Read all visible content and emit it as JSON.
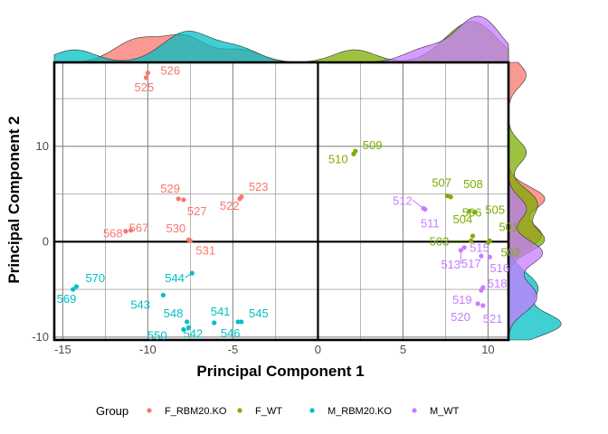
{
  "chart_data": {
    "type": "scatter",
    "title": "",
    "xlabel": "Principal Component 1",
    "ylabel": "Principal Component 2",
    "xlim": [
      -15.5,
      11.2
    ],
    "ylim": [
      -10.3,
      18.8
    ],
    "xticks": [
      -15,
      -10,
      -5,
      0,
      5,
      10
    ],
    "yticks": [
      -10,
      0,
      10
    ],
    "grid": true,
    "marginal_density": {
      "top": true,
      "right": true
    },
    "legend": {
      "title": "Group",
      "position": "bottom"
    },
    "series": [
      {
        "name": "F_RBM20.KO",
        "color": "#F8766D",
        "points": [
          {
            "label": "526",
            "x": -10.0,
            "y": 17.7
          },
          {
            "label": "525",
            "x": -10.1,
            "y": 17.2
          },
          {
            "label": "529",
            "x": -8.2,
            "y": 4.5
          },
          {
            "label": "527",
            "x": -7.9,
            "y": 4.4
          },
          {
            "label": "523",
            "x": -4.5,
            "y": 4.7
          },
          {
            "label": "522",
            "x": -4.6,
            "y": 4.5
          },
          {
            "label": "567",
            "x": -11.0,
            "y": 1.2
          },
          {
            "label": "568",
            "x": -11.3,
            "y": 1.1
          },
          {
            "label": "530",
            "x": -7.6,
            "y": 0.2
          },
          {
            "label": "531",
            "x": -7.5,
            "y": 0.1
          }
        ]
      },
      {
        "name": "F_WT",
        "color": "#7CAE00",
        "points": [
          {
            "label": "509",
            "x": 2.2,
            "y": 9.5
          },
          {
            "label": "510",
            "x": 2.1,
            "y": 9.2
          },
          {
            "label": "507",
            "x": 7.6,
            "y": 4.8
          },
          {
            "label": "508",
            "x": 7.8,
            "y": 4.7
          },
          {
            "label": "506",
            "x": 8.9,
            "y": 3.2
          },
          {
            "label": "505",
            "x": 9.2,
            "y": 3.1
          },
          {
            "label": "504",
            "x": 9.1,
            "y": 0.6
          },
          {
            "label": "501",
            "x": 10.1,
            "y": 0.1
          },
          {
            "label": "503",
            "x": 9.0,
            "y": 0.1
          },
          {
            "label": "502",
            "x": 10.0,
            "y": -0.1
          }
        ]
      },
      {
        "name": "M_RBM20.KO",
        "color": "#00BFC4",
        "points": [
          {
            "label": "570",
            "x": -14.2,
            "y": -4.7
          },
          {
            "label": "569",
            "x": -14.4,
            "y": -5.0
          },
          {
            "label": "544",
            "x": -7.4,
            "y": -3.3
          },
          {
            "label": "543",
            "x": -9.1,
            "y": -5.6
          },
          {
            "label": "548",
            "x": -7.7,
            "y": -8.4
          },
          {
            "label": "541",
            "x": -6.1,
            "y": -8.5
          },
          {
            "label": "545",
            "x": -4.7,
            "y": -8.4
          },
          {
            "label": "546",
            "x": -4.5,
            "y": -8.4
          },
          {
            "label": "550",
            "x": -7.9,
            "y": -9.2
          },
          {
            "label": "542",
            "x": -7.6,
            "y": -9.0
          }
        ]
      },
      {
        "name": "M_WT",
        "color": "#C77CFF",
        "points": [
          {
            "label": "512",
            "x": 6.2,
            "y": 3.5
          },
          {
            "label": "511",
            "x": 6.3,
            "y": 3.4
          },
          {
            "label": "515",
            "x": 8.6,
            "y": -0.6
          },
          {
            "label": "513",
            "x": 8.4,
            "y": -0.9
          },
          {
            "label": "517",
            "x": 9.6,
            "y": -1.5
          },
          {
            "label": "516",
            "x": 10.1,
            "y": -1.6
          },
          {
            "label": "518",
            "x": 9.7,
            "y": -4.8
          },
          {
            "label": "519",
            "x": 9.6,
            "y": -5.1
          },
          {
            "label": "520",
            "x": 9.4,
            "y": -6.5
          },
          {
            "label": "521",
            "x": 9.7,
            "y": -6.7
          }
        ]
      }
    ]
  }
}
